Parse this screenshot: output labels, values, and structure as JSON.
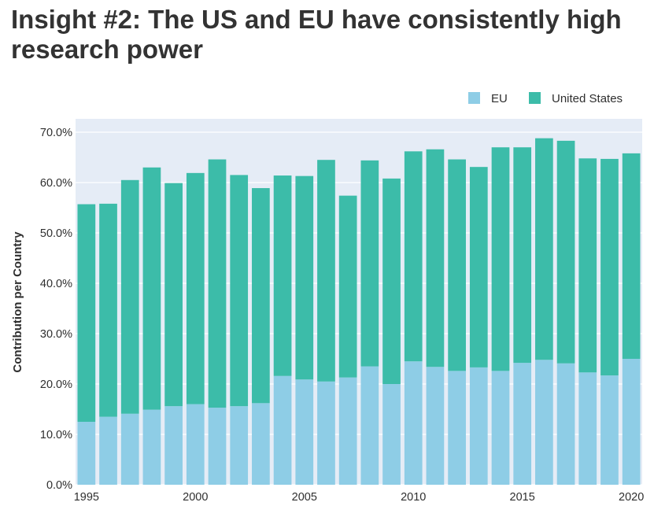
{
  "title": "Insight #2: The US and EU have consistently high research power",
  "chart_data": {
    "type": "bar",
    "stacked": true,
    "x": [
      1995,
      1996,
      1997,
      1998,
      1999,
      2000,
      2001,
      2002,
      2003,
      2004,
      2005,
      2006,
      2007,
      2008,
      2009,
      2010,
      2011,
      2012,
      2013,
      2014,
      2015,
      2016,
      2017,
      2018,
      2019,
      2020
    ],
    "x_ticks": [
      "1995",
      "2000",
      "2005",
      "2010",
      "2015",
      "2020"
    ],
    "y_ticks": [
      "0.0%",
      "10.0%",
      "20.0%",
      "30.0%",
      "40.0%",
      "50.0%",
      "60.0%",
      "70.0%"
    ],
    "ylabel": "Contribution per Country",
    "xlabel": "",
    "ylim": [
      0,
      72
    ],
    "legend_position": "top-right",
    "grid": true,
    "series": [
      {
        "name": "EU",
        "color": "#8ecde6",
        "values": [
          12.5,
          13.5,
          14.1,
          14.9,
          15.6,
          16.0,
          15.3,
          15.6,
          16.2,
          21.6,
          20.9,
          20.5,
          21.3,
          23.5,
          20.0,
          24.5,
          23.4,
          22.6,
          23.3,
          22.6,
          24.2,
          24.8,
          24.1,
          22.3,
          21.7,
          25.0
        ]
      },
      {
        "name": "United States",
        "color": "#3cbca9",
        "values": [
          43.2,
          42.3,
          46.4,
          48.1,
          44.3,
          45.9,
          49.3,
          45.9,
          42.7,
          39.8,
          40.4,
          44.0,
          36.1,
          40.9,
          40.8,
          41.7,
          43.2,
          42.0,
          39.8,
          44.4,
          42.8,
          44.0,
          44.2,
          42.5,
          43.0,
          40.8
        ]
      }
    ]
  }
}
